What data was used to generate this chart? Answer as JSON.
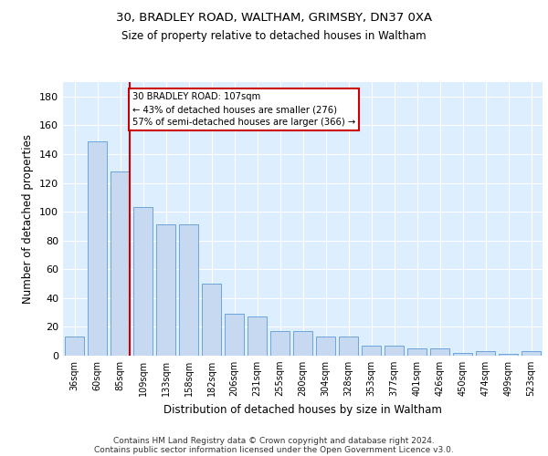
{
  "title1": "30, BRADLEY ROAD, WALTHAM, GRIMSBY, DN37 0XA",
  "title2": "Size of property relative to detached houses in Waltham",
  "xlabel": "Distribution of detached houses by size in Waltham",
  "ylabel": "Number of detached properties",
  "categories": [
    "36sqm",
    "60sqm",
    "85sqm",
    "109sqm",
    "133sqm",
    "158sqm",
    "182sqm",
    "206sqm",
    "231sqm",
    "255sqm",
    "280sqm",
    "304sqm",
    "328sqm",
    "353sqm",
    "377sqm",
    "401sqm",
    "426sqm",
    "450sqm",
    "474sqm",
    "499sqm",
    "523sqm"
  ],
  "values": [
    13,
    149,
    128,
    103,
    91,
    91,
    50,
    29,
    27,
    17,
    17,
    13,
    13,
    7,
    7,
    5,
    5,
    2,
    3,
    1,
    3
  ],
  "bar_color": "#c6d9f1",
  "bar_edge_color": "#5b9bd5",
  "background_color": "#ddeeff",
  "grid_color": "#ffffff",
  "vline_color": "#cc0000",
  "annotation_line1": "30 BRADLEY ROAD: 107sqm",
  "annotation_line2": "← 43% of detached houses are smaller (276)",
  "annotation_line3": "57% of semi-detached houses are larger (366) →",
  "annotation_box_color": "#ffffff",
  "annotation_box_edge": "#cc0000",
  "ylim": [
    0,
    190
  ],
  "yticks": [
    0,
    20,
    40,
    60,
    80,
    100,
    120,
    140,
    160,
    180
  ],
  "footer_line1": "Contains HM Land Registry data © Crown copyright and database right 2024.",
  "footer_line2": "Contains public sector information licensed under the Open Government Licence v3.0."
}
